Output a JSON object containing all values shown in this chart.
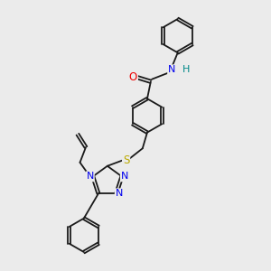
{
  "background_color": "#ebebeb",
  "bond_color": "#1a1a1a",
  "atom_colors": {
    "N": "#0000ee",
    "O": "#ee0000",
    "S": "#bbaa00",
    "H": "#008888",
    "C": "#1a1a1a"
  },
  "figsize": [
    3.0,
    3.0
  ],
  "dpi": 100
}
